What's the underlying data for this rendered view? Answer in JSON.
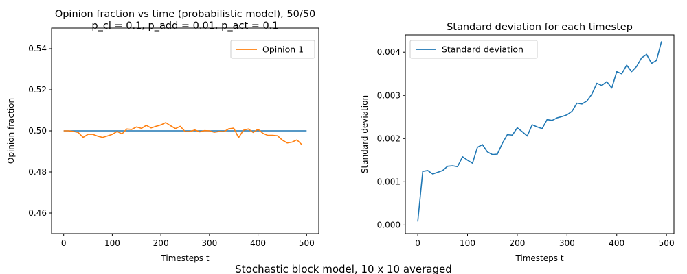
{
  "suptitle": "Stochastic block model, 10 x 10 averaged",
  "chart_data": [
    {
      "type": "line",
      "title": [
        "Opinion fraction vs time (probabilistic model), 50/50",
        "p_cl = 0.1, p_add = 0.01, p_act = 0.1"
      ],
      "xlabel": "Timesteps t",
      "ylabel": "Opinion fraction",
      "xlim": [
        -25,
        525
      ],
      "ylim": [
        0.45,
        0.55
      ],
      "xticks": [
        0,
        100,
        200,
        300,
        400,
        500
      ],
      "yticks": [
        0.46,
        0.48,
        0.5,
        0.52,
        0.54
      ],
      "ytick_labels": [
        "0.46",
        "0.48",
        "0.50",
        "0.52",
        "0.54"
      ],
      "legend_position": "upper right",
      "series": [
        {
          "color": "#1f77b4",
          "x": [
            0,
            500
          ],
          "y": [
            0.5,
            0.5
          ]
        },
        {
          "name": "Opinion 1",
          "color": "#ff7f0e",
          "x": [
            0,
            10,
            20,
            30,
            40,
            50,
            60,
            70,
            80,
            90,
            100,
            110,
            120,
            130,
            140,
            150,
            160,
            170,
            180,
            190,
            200,
            210,
            220,
            230,
            240,
            250,
            260,
            270,
            280,
            290,
            300,
            310,
            320,
            330,
            340,
            350,
            360,
            370,
            380,
            390,
            400,
            410,
            420,
            430,
            440,
            450,
            460,
            470,
            480,
            490
          ],
          "y": [
            0.5,
            0.5,
            0.4997,
            0.4992,
            0.4968,
            0.4983,
            0.4983,
            0.4974,
            0.4968,
            0.4975,
            0.4983,
            0.4997,
            0.4985,
            0.5009,
            0.5007,
            0.5019,
            0.5012,
            0.5027,
            0.5014,
            0.5022,
            0.5029,
            0.504,
            0.5025,
            0.5011,
            0.5022,
            0.4996,
            0.4997,
            0.5004,
            0.4995,
            0.5001,
            0.5,
            0.4993,
            0.4997,
            0.4996,
            0.501,
            0.5013,
            0.4967,
            0.5003,
            0.5009,
            0.4992,
            0.5008,
            0.4988,
            0.4978,
            0.4978,
            0.4976,
            0.4955,
            0.4941,
            0.4945,
            0.4956,
            0.4933
          ]
        }
      ]
    },
    {
      "type": "line",
      "title": [
        "Standard deviation for each timestep"
      ],
      "xlabel": "Timesteps t",
      "ylabel": "Standard deviation",
      "xlim": [
        -25,
        515
      ],
      "ylim": [
        -0.0002,
        0.0044
      ],
      "xticks": [
        0,
        100,
        200,
        300,
        400,
        500
      ],
      "yticks": [
        0,
        0.001,
        0.002,
        0.003,
        0.004
      ],
      "ytick_labels": [
        "0.000",
        "0.001",
        "0.002",
        "0.003",
        "0.004"
      ],
      "legend_position": "upper left",
      "series": [
        {
          "name": "Standard deviation",
          "color": "#1f77b4",
          "x": [
            0,
            10,
            20,
            30,
            40,
            50,
            60,
            70,
            80,
            90,
            100,
            110,
            120,
            130,
            140,
            150,
            160,
            170,
            180,
            190,
            200,
            210,
            220,
            230,
            240,
            250,
            260,
            270,
            280,
            290,
            300,
            310,
            320,
            330,
            340,
            350,
            360,
            370,
            380,
            390,
            400,
            410,
            420,
            430,
            440,
            450,
            460,
            470,
            480,
            490
          ],
          "y": [
            8e-05,
            0.00124,
            0.00126,
            0.00118,
            0.00122,
            0.00126,
            0.00136,
            0.00137,
            0.00135,
            0.00158,
            0.0015,
            0.00143,
            0.0018,
            0.00186,
            0.00169,
            0.00163,
            0.00164,
            0.00189,
            0.00209,
            0.00208,
            0.00225,
            0.00216,
            0.00206,
            0.00232,
            0.00227,
            0.00223,
            0.00244,
            0.00242,
            0.00248,
            0.00251,
            0.00255,
            0.00263,
            0.00282,
            0.0028,
            0.00287,
            0.00303,
            0.00328,
            0.00323,
            0.00332,
            0.00317,
            0.00355,
            0.0035,
            0.0037,
            0.00355,
            0.00367,
            0.00387,
            0.00395,
            0.00374,
            0.00381,
            0.00425
          ]
        }
      ]
    }
  ]
}
